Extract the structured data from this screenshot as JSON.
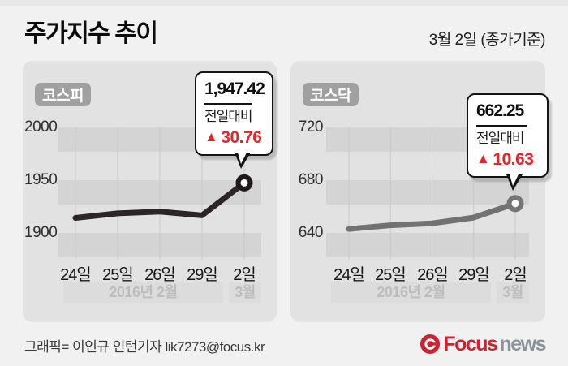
{
  "header": {
    "title": "주가지수 추이",
    "date_note": "3월 2일 (종가기준)"
  },
  "colors": {
    "page_background": "#f1f1f1",
    "panel_background": "#e2e2e2",
    "stripe_band": "#d4d4d4",
    "gridline": "#c9c9c9",
    "accent_red": "#e4252b",
    "logo_red": "#cd2230",
    "logo_gray": "#8b9298"
  },
  "chart_data": [
    {
      "type": "line",
      "index_name": "코스피",
      "x": [
        "24일",
        "25일",
        "26일",
        "29일",
        "2일"
      ],
      "values": [
        1914.22,
        1918.57,
        1920.16,
        1916.66,
        1947.42
      ],
      "y_ticks": [
        "2000",
        "1950",
        "1900"
      ],
      "ylim": [
        1875,
        2012
      ],
      "grid": "banded-horizontal with vertical tick lines",
      "legend_position": "none",
      "x_group_labels": [
        {
          "label": "2016년 2월"
        },
        {
          "label": "3월"
        }
      ],
      "line_color": "#2a2526",
      "marker_ring_color": "#1e1a1b",
      "callout": {
        "value_label": "1,947.42",
        "caption": "전일대비",
        "change_symbol": "▲",
        "change_label": "30.76",
        "change_direction": "up",
        "change_color": "#e4252b"
      }
    },
    {
      "type": "line",
      "index_name": "코스닥",
      "x": [
        "24일",
        "25일",
        "26일",
        "29일",
        "2일"
      ],
      "values": [
        642.97,
        645.8,
        647.27,
        651.62,
        662.25
      ],
      "y_ticks": [
        "720",
        "680",
        "640"
      ],
      "ylim": [
        610,
        730
      ],
      "grid": "banded-horizontal with vertical tick lines",
      "legend_position": "none",
      "x_group_labels": [
        {
          "label": "2016년 2월"
        },
        {
          "label": "3월"
        }
      ],
      "line_color": "#727272",
      "marker_ring_color": "#757575",
      "callout": {
        "value_label": "662.25",
        "caption": "전일대비",
        "change_symbol": "▲",
        "change_label": "10.63",
        "change_direction": "up",
        "change_color": "#e4252b"
      }
    }
  ],
  "footer": {
    "credit": "그래픽= 이인규 인턴기자 lik7273@focus.kr",
    "logo": {
      "icon": "focus-swirl-icon",
      "brand": "Focus",
      "suffix": "news"
    }
  }
}
